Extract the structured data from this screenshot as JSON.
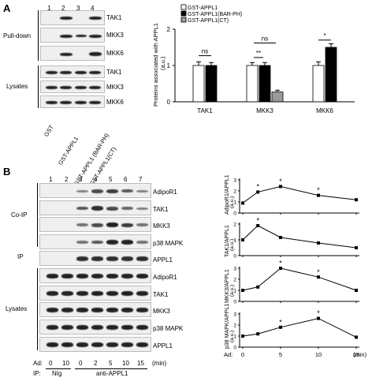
{
  "panelA": {
    "letter": "A",
    "lanes": [
      "1",
      "2",
      "3",
      "4"
    ],
    "group_pulldown": "Pull-down",
    "group_lysates": "Lysates",
    "blot_labels": [
      "TAK1",
      "MKK3",
      "MKK6",
      "TAK1",
      "MKK3",
      "MKK6"
    ],
    "sample_labels": [
      "GST",
      "GST-APPL1",
      "GST-APPL1 (BAR-PH)",
      "GST-APPL1(CT)"
    ]
  },
  "panelB": {
    "letter": "B",
    "lanes": [
      "1",
      "2",
      "3",
      "4",
      "5",
      "6",
      "7"
    ],
    "group_coip": "Co-IP",
    "group_ip": "IP",
    "group_lysates": "Lysates",
    "blot_labels": [
      "AdipoR1",
      "TAK1",
      "MKK3",
      "p38 MAPK",
      "APPL1",
      "AdipoR1",
      "TAK1",
      "MKK3",
      "p38 MAPK",
      "APPL1"
    ],
    "ad_label": "Ad:",
    "ad_values": [
      "0",
      "10",
      "0",
      "2",
      "5",
      "10",
      "15"
    ],
    "ad_unit": "(min)",
    "ip_label": "IP:",
    "ip_nig": "NIg",
    "ip_anti": "anti-APPL1"
  },
  "chart_data": [
    {
      "type": "bar",
      "categories": [
        "TAK1",
        "MKK3",
        "MKK6"
      ],
      "series": [
        {
          "name": "GST-APPL1",
          "color": "#ffffff",
          "values": [
            1.0,
            1.0,
            1.0
          ],
          "errors": [
            0.1,
            0.08,
            0.1
          ]
        },
        {
          "name": "GST-APPL1(BAR-PH)",
          "color": "#000000",
          "values": [
            1.0,
            1.0,
            1.5
          ],
          "errors": [
            0.08,
            0.08,
            0.1
          ]
        },
        {
          "name": "GST-APPL1(CT)",
          "color": "#9a9a9a",
          "values": [
            null,
            0.27,
            null
          ],
          "errors": [
            null,
            0.05,
            null
          ]
        }
      ],
      "ylabel": "Proteins associated with APPL1",
      "yunit": "(a.u.)",
      "ylim": [
        0,
        2
      ],
      "yticks": [
        "0",
        "1",
        "2"
      ],
      "significance": [
        "ns",
        "**",
        "ns",
        "*"
      ]
    },
    {
      "type": "line",
      "ylabel": "AdipoR1/APPL1",
      "yunit": "(a.u.)",
      "x": [
        0,
        2,
        5,
        10,
        15
      ],
      "y": [
        0.9,
        1.9,
        2.4,
        1.6,
        1.2
      ],
      "errors": [
        0.05,
        0.12,
        0.1,
        0.1,
        0.1
      ],
      "stars": [
        false,
        true,
        true,
        true,
        false
      ],
      "ylim": [
        0,
        3
      ],
      "yticks": [
        "0",
        "1",
        "2",
        "3"
      ]
    },
    {
      "type": "line",
      "ylabel": "TAK1/APPL1",
      "yunit": "(a.u.)",
      "x": [
        0,
        2,
        5,
        10,
        15
      ],
      "y": [
        1.0,
        1.9,
        1.15,
        0.8,
        0.5
      ],
      "errors": [
        0.05,
        0.08,
        0.06,
        0.05,
        0.05
      ],
      "stars": [
        false,
        true,
        false,
        false,
        false
      ],
      "ylim": [
        0,
        2
      ],
      "yticks": [
        "0",
        "1",
        "2"
      ]
    },
    {
      "type": "line",
      "ylabel": "MKK3/APPL1",
      "yunit": "(a.u.)",
      "x": [
        0,
        2,
        5,
        10,
        15
      ],
      "y": [
        1.0,
        1.3,
        3.0,
        2.2,
        1.0
      ],
      "errors": [
        0.05,
        0.12,
        0.1,
        0.1,
        0.08
      ],
      "stars": [
        false,
        false,
        true,
        true,
        false
      ],
      "ylim": [
        0,
        3
      ],
      "yticks": [
        "0",
        "1",
        "2",
        "3"
      ]
    },
    {
      "type": "line",
      "ylabel": "p38 MAPK/APPL1",
      "yunit": "(a.u.)",
      "x": [
        0,
        2,
        5,
        10,
        15
      ],
      "y": [
        1.0,
        1.2,
        1.8,
        2.6,
        0.9
      ],
      "errors": [
        0.05,
        0.1,
        0.1,
        0.12,
        0.06
      ],
      "stars": [
        false,
        false,
        true,
        true,
        false
      ],
      "ylim": [
        0,
        3
      ],
      "yticks": [
        "0",
        "1",
        "2",
        "3"
      ],
      "xlabel": "Ad:",
      "xunit": "(min)",
      "xticks": [
        "0",
        "5",
        "10",
        "15"
      ]
    }
  ]
}
